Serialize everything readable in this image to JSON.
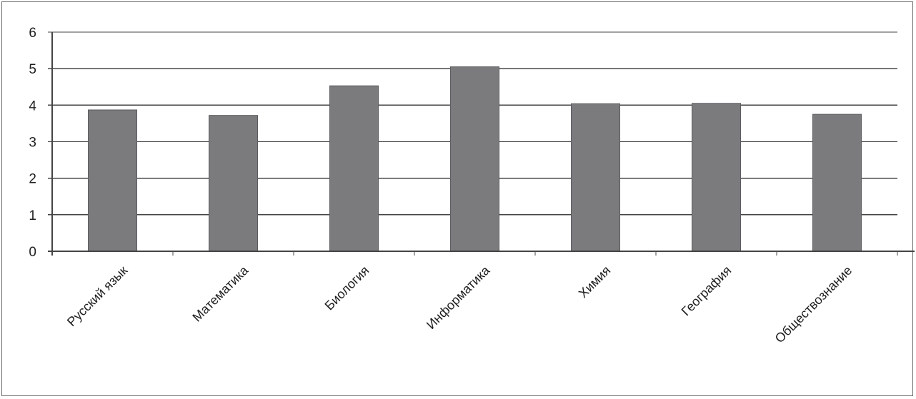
{
  "chart_data": {
    "type": "bar",
    "categories": [
      "Русский язык",
      "Математика",
      "Биология",
      "Информатика",
      "Химия",
      "География",
      "Обществознание"
    ],
    "values": [
      3.87,
      3.72,
      4.53,
      5.05,
      4.04,
      4.05,
      3.75
    ],
    "title": "",
    "xlabel": "",
    "ylabel": "",
    "ylim": [
      0,
      6
    ],
    "yticks": [
      "0",
      "1",
      "2",
      "3",
      "4",
      "5",
      "6"
    ],
    "grid": true,
    "legend": "none",
    "colors": {
      "bar": "#7b7b7e",
      "bar_edge": "#5c5c60",
      "grid": "#444444",
      "text": "#1e1e1e"
    }
  }
}
